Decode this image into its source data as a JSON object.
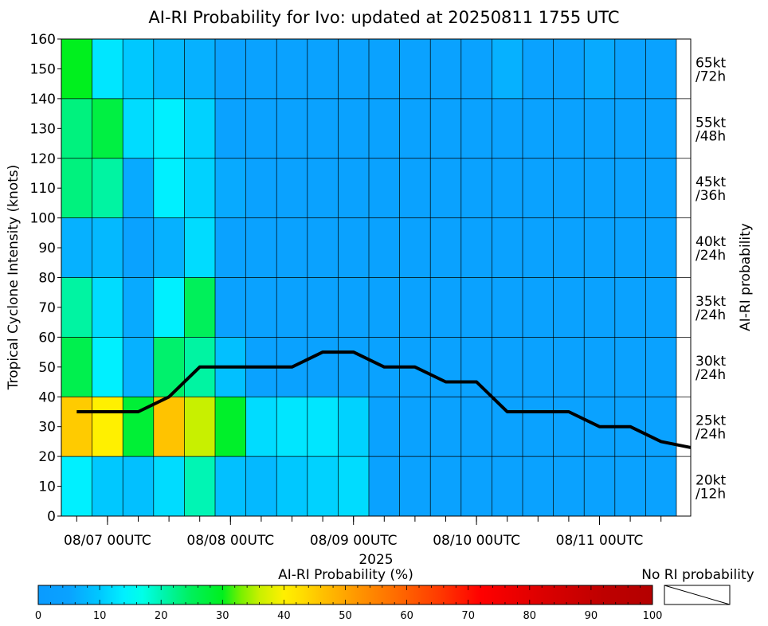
{
  "chart_data": {
    "type": "heatmap",
    "title": "AI-RI Probability for Ivo: updated at 20250811 1755 UTC",
    "ylabel": "Tropical Cyclone Intensity (knots)",
    "xlabel": "2025",
    "right_label": "AI-RI probability",
    "ylim": [
      0,
      160
    ],
    "yticks": [
      0,
      10,
      20,
      30,
      40,
      50,
      60,
      70,
      80,
      90,
      100,
      110,
      120,
      130,
      140,
      150,
      160
    ],
    "x_tick_labels": [
      "08/07 00UTC",
      "08/08 00UTC",
      "08/09 00UTC",
      "08/10 00UTC",
      "08/11 00UTC"
    ],
    "x_tick_label_col": [
      1.5,
      5.5,
      9.5,
      13.5,
      17.5
    ],
    "time_step_hours": 6,
    "intensity_bands": [
      {
        "low": 0,
        "high": 20,
        "label1": "20kt",
        "label2": "/12h"
      },
      {
        "low": 20,
        "high": 40,
        "label1": "25kt",
        "label2": "/24h"
      },
      {
        "low": 40,
        "high": 60,
        "label1": "30kt",
        "label2": "/24h"
      },
      {
        "low": 60,
        "high": 80,
        "label1": "35kt",
        "label2": "/24h"
      },
      {
        "low": 80,
        "high": 100,
        "label1": "40kt",
        "label2": "/24h"
      },
      {
        "low": 100,
        "high": 120,
        "label1": "45kt",
        "label2": "/36h"
      },
      {
        "low": 120,
        "high": 140,
        "label1": "55kt",
        "label2": "/48h"
      },
      {
        "low": 140,
        "high": 160,
        "label1": "65kt",
        "label2": "/72h"
      }
    ],
    "probabilities_percent": [
      [
        14,
        10,
        9,
        12,
        20,
        9,
        8,
        10,
        11,
        12,
        5,
        5,
        5,
        5,
        5,
        5,
        5,
        5,
        5,
        5
      ],
      [
        45,
        40,
        28,
        46,
        36,
        29,
        12,
        13,
        13,
        11,
        5,
        5,
        5,
        5,
        5,
        5,
        5,
        5,
        5,
        5
      ],
      [
        26,
        14,
        7,
        24,
        21,
        9,
        5,
        5,
        5,
        5,
        5,
        5,
        5,
        5,
        5,
        5,
        5,
        5,
        5,
        5
      ],
      [
        21,
        12,
        6,
        14,
        25,
        5,
        5,
        5,
        5,
        5,
        5,
        5,
        5,
        5,
        5,
        5,
        5,
        5,
        5,
        5
      ],
      [
        7,
        8,
        5,
        7,
        12,
        5,
        5,
        5,
        5,
        5,
        5,
        5,
        5,
        5,
        5,
        5,
        5,
        5,
        5,
        5
      ],
      [
        23,
        21,
        6,
        14,
        11,
        6,
        5,
        5,
        5,
        5,
        5,
        5,
        5,
        5,
        5,
        5,
        5,
        5,
        5,
        5
      ],
      [
        23,
        27,
        12,
        14,
        11,
        5,
        5,
        5,
        5,
        5,
        5,
        5,
        5,
        5,
        5,
        5,
        5,
        5,
        5,
        5
      ],
      [
        30,
        13,
        10,
        8,
        7,
        5,
        5,
        5,
        5,
        5,
        5,
        5,
        5,
        5,
        7,
        5,
        5,
        6,
        5,
        5
      ]
    ],
    "intensity_forecast": {
      "x": [
        0.5,
        1.5,
        2.5,
        3.5,
        4.5,
        5.5,
        6.5,
        7.5,
        8.5,
        9.5,
        10.5,
        11.5,
        12.5,
        13.5,
        14.5,
        15.5,
        16.5,
        17.5,
        18.5,
        19.5,
        20.5
      ],
      "y": [
        35,
        35,
        35,
        40,
        50,
        50,
        50,
        50,
        55,
        55,
        50,
        50,
        45,
        45,
        35,
        35,
        35,
        30,
        30,
        25,
        23
      ]
    },
    "colorbar": {
      "label": "AI-RI Probability (%)",
      "ticks": [
        0,
        10,
        20,
        30,
        40,
        50,
        60,
        70,
        80,
        90,
        100
      ],
      "stops": [
        {
          "v": 0,
          "c": "#0a9bff"
        },
        {
          "v": 5,
          "c": "#0aa2ff"
        },
        {
          "v": 10,
          "c": "#00c8ff"
        },
        {
          "v": 14,
          "c": "#00f0ff"
        },
        {
          "v": 17,
          "c": "#00ffe8"
        },
        {
          "v": 20,
          "c": "#00f5b4"
        },
        {
          "v": 25,
          "c": "#00f05a"
        },
        {
          "v": 30,
          "c": "#00f01e"
        },
        {
          "v": 33,
          "c": "#78f000"
        },
        {
          "v": 36,
          "c": "#c8f000"
        },
        {
          "v": 40,
          "c": "#fff000"
        },
        {
          "v": 43,
          "c": "#ffdc00"
        },
        {
          "v": 46,
          "c": "#ffc300"
        },
        {
          "v": 52,
          "c": "#ff9600"
        },
        {
          "v": 58,
          "c": "#ff6e00"
        },
        {
          "v": 65,
          "c": "#ff3c00"
        },
        {
          "v": 72,
          "c": "#ff0000"
        },
        {
          "v": 82,
          "c": "#dc0000"
        },
        {
          "v": 92,
          "c": "#be0000"
        },
        {
          "v": 100,
          "c": "#b40000"
        }
      ],
      "no_ri_label": "No RI probability"
    }
  }
}
